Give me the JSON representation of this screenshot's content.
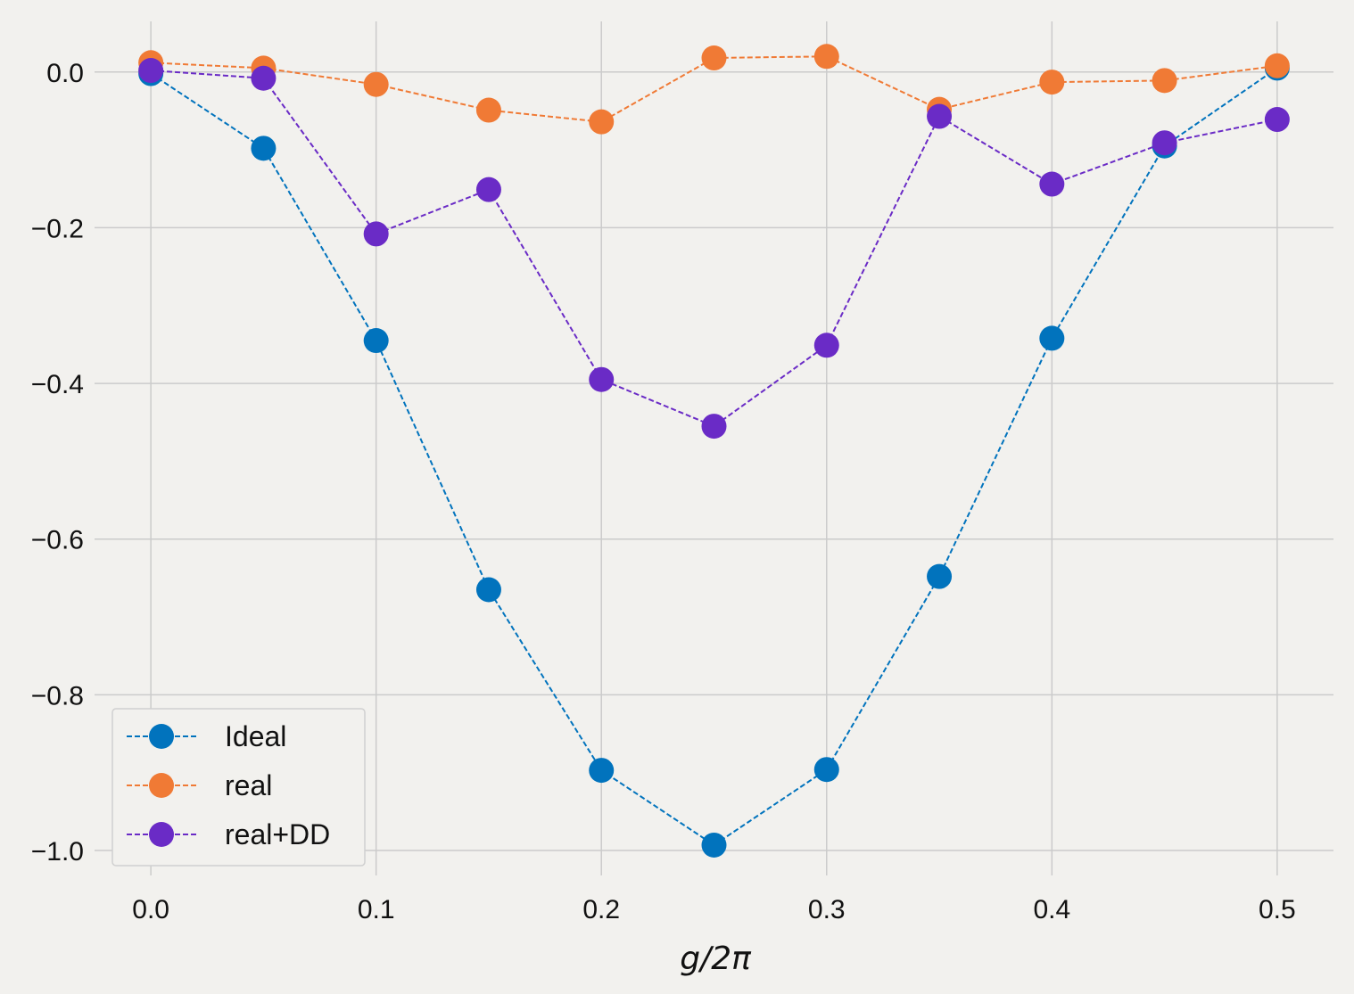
{
  "chart_data": {
    "type": "line",
    "xlabel": "g/2π",
    "ylabel": "",
    "title": "",
    "xlim": [
      -0.025,
      0.525
    ],
    "ylim": [
      -1.032,
      0.065
    ],
    "grid": true,
    "legend_position": "lower-left",
    "x_ticks": [
      0.0,
      0.1,
      0.2,
      0.3,
      0.4,
      0.5
    ],
    "x_tick_labels": [
      "0.0",
      "0.1",
      "0.2",
      "0.3",
      "0.4",
      "0.5"
    ],
    "y_ticks": [
      0.0,
      -0.2,
      -0.4,
      -0.6,
      -0.8,
      -1.0
    ],
    "y_tick_labels": [
      "0.0",
      "−0.2",
      "−0.4",
      "−0.6",
      "−0.8",
      "−1.0"
    ],
    "x": [
      0.0,
      0.05,
      0.1,
      0.15,
      0.2,
      0.25,
      0.3,
      0.35,
      0.4,
      0.45,
      0.5
    ],
    "series": [
      {
        "name": "Ideal",
        "color": "#0173bd",
        "values": [
          -0.002,
          -0.098,
          -0.345,
          -0.665,
          -0.897,
          -0.993,
          -0.896,
          -0.648,
          -0.342,
          -0.095,
          0.005
        ]
      },
      {
        "name": "real",
        "color": "#f07a35",
        "values": [
          0.012,
          0.005,
          -0.016,
          -0.049,
          -0.064,
          0.018,
          0.02,
          -0.048,
          -0.013,
          -0.011,
          0.008
        ]
      },
      {
        "name": "real+DD",
        "color": "#6a2bc6",
        "values": [
          0.002,
          -0.008,
          -0.208,
          -0.151,
          -0.395,
          -0.455,
          -0.351,
          -0.057,
          -0.144,
          -0.091,
          -0.061
        ]
      }
    ]
  }
}
